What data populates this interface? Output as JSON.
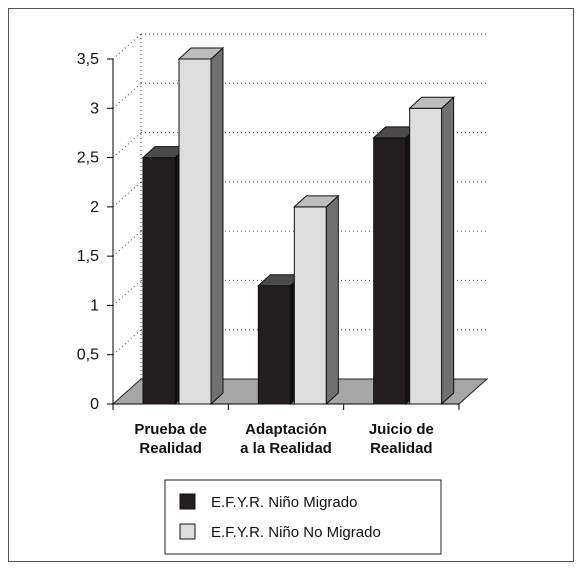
{
  "chart_data": {
    "type": "bar",
    "categories": [
      [
        "Prueba de",
        "Realidad"
      ],
      [
        "Adaptación",
        "a la Realidad"
      ],
      [
        "Juicio de",
        "Realidad"
      ]
    ],
    "series": [
      {
        "name": "E.F.Y.R. Niño Migrado",
        "values": [
          2.5,
          1.2,
          2.7
        ],
        "color": "#231f20"
      },
      {
        "name": "E.F.Y.R. Niño No Migrado",
        "values": [
          3.5,
          2.0,
          3.0
        ],
        "color": "#dedede"
      }
    ],
    "yticks": [
      "0",
      "0,5",
      "1",
      "1,5",
      "2",
      "2,5",
      "3",
      "3,5"
    ],
    "ylim": [
      0,
      3.5
    ],
    "grid": true,
    "legend_position": "bottom-center",
    "colors": {
      "floor": "#a6a6a6",
      "bar_light_side": "#707070",
      "bar_dark_side": "#111111",
      "bar_light_top": "#bdbdbd",
      "bar_dark_top": "#4a4a4a"
    }
  }
}
